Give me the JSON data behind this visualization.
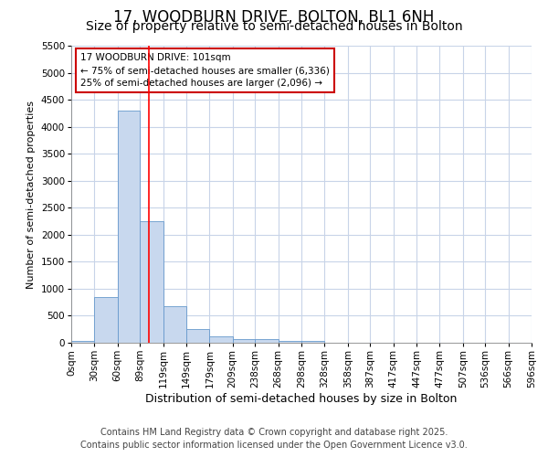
{
  "title1": "17, WOODBURN DRIVE, BOLTON, BL1 6NH",
  "title2": "Size of property relative to semi-detached houses in Bolton",
  "xlabel": "Distribution of semi-detached houses by size in Bolton",
  "ylabel": "Number of semi-detached properties",
  "annotation_title": "17 WOODBURN DRIVE: 101sqm",
  "annotation_line1": "← 75% of semi-detached houses are smaller (6,336)",
  "annotation_line2": "25% of semi-detached houses are larger (2,096) →",
  "footnote1": "Contains HM Land Registry data © Crown copyright and database right 2025.",
  "footnote2": "Contains public sector information licensed under the Open Government Licence v3.0.",
  "bin_edges": [
    0,
    30,
    60,
    89,
    119,
    149,
    179,
    209,
    238,
    268,
    298,
    328,
    358,
    387,
    417,
    447,
    477,
    507,
    536,
    566,
    596
  ],
  "bin_labels": [
    "0sqm",
    "30sqm",
    "60sqm",
    "89sqm",
    "119sqm",
    "149sqm",
    "179sqm",
    "209sqm",
    "238sqm",
    "268sqm",
    "298sqm",
    "328sqm",
    "358sqm",
    "387sqm",
    "417sqm",
    "447sqm",
    "477sqm",
    "507sqm",
    "536sqm",
    "566sqm",
    "596sqm"
  ],
  "bar_heights": [
    30,
    850,
    4300,
    2250,
    680,
    250,
    120,
    65,
    65,
    40,
    30,
    0,
    0,
    0,
    0,
    0,
    0,
    0,
    0,
    0
  ],
  "bar_color": "#c8d8ee",
  "bar_edge_color": "#6699cc",
  "red_line_x": 101,
  "ylim": [
    0,
    5500
  ],
  "yticks": [
    0,
    500,
    1000,
    1500,
    2000,
    2500,
    3000,
    3500,
    4000,
    4500,
    5000,
    5500
  ],
  "plot_bg_color": "#ffffff",
  "fig_bg_color": "#ffffff",
  "grid_color": "#c8d4e8",
  "annotation_box_color": "#ffffff",
  "annotation_box_edge": "#cc0000",
  "title1_fontsize": 12,
  "title2_fontsize": 10,
  "xlabel_fontsize": 9,
  "ylabel_fontsize": 8,
  "tick_fontsize": 7.5,
  "footnote_fontsize": 7
}
